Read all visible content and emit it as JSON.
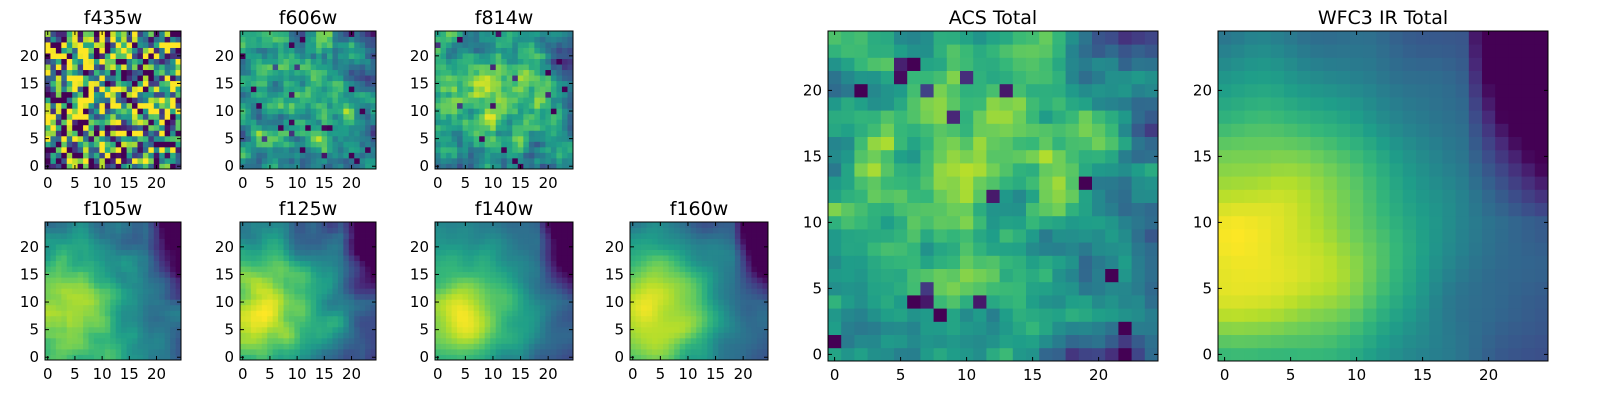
{
  "chart_data": [
    {
      "type": "heatmap",
      "title": "f435w",
      "grid": [
        25,
        25
      ],
      "xlim": [
        0,
        24
      ],
      "ylim": [
        0,
        24
      ],
      "xticks": [
        0,
        5,
        10,
        15,
        20
      ],
      "yticks": [
        0,
        5,
        10,
        15,
        20
      ],
      "colormap": "viridis",
      "seed": 11,
      "smooth": 0.0,
      "noise": 1.0,
      "blob": [
        12,
        12,
        0.25
      ],
      "dark_corner": 0.0
    },
    {
      "type": "heatmap",
      "title": "f606w",
      "grid": [
        25,
        25
      ],
      "xlim": [
        0,
        24
      ],
      "ylim": [
        0,
        24
      ],
      "xticks": [
        0,
        5,
        10,
        15,
        20
      ],
      "yticks": [
        0,
        5,
        10,
        15,
        20
      ],
      "colormap": "viridis",
      "seed": 23,
      "smooth": 0.15,
      "noise": 0.9,
      "blob": [
        10,
        12,
        0.35
      ],
      "dark_corner": 0.1
    },
    {
      "type": "heatmap",
      "title": "f814w",
      "grid": [
        25,
        25
      ],
      "xlim": [
        0,
        24
      ],
      "ylim": [
        0,
        24
      ],
      "xticks": [
        0,
        5,
        10,
        15,
        20
      ],
      "yticks": [
        0,
        5,
        10,
        15,
        20
      ],
      "colormap": "viridis",
      "seed": 37,
      "smooth": 0.3,
      "noise": 0.8,
      "blob": [
        11,
        13,
        0.5
      ],
      "dark_corner": 0.15
    },
    {
      "type": "heatmap",
      "title": "f105w",
      "grid": [
        25,
        25
      ],
      "xlim": [
        0,
        24
      ],
      "ylim": [
        0,
        24
      ],
      "xticks": [
        0,
        5,
        10,
        15,
        20
      ],
      "yticks": [
        0,
        5,
        10,
        15,
        20
      ],
      "colormap": "viridis",
      "seed": 41,
      "smooth": 0.6,
      "noise": 0.5,
      "blob": [
        3,
        8,
        0.7
      ],
      "dark_corner": 0.6
    },
    {
      "type": "heatmap",
      "title": "f125w",
      "grid": [
        25,
        25
      ],
      "xlim": [
        0,
        24
      ],
      "ylim": [
        0,
        24
      ],
      "xticks": [
        0,
        5,
        10,
        15,
        20
      ],
      "yticks": [
        0,
        5,
        10,
        15,
        20
      ],
      "colormap": "viridis",
      "seed": 53,
      "smooth": 0.6,
      "noise": 0.5,
      "blob": [
        3,
        8,
        0.7
      ],
      "dark_corner": 0.7
    },
    {
      "type": "heatmap",
      "title": "f140w",
      "grid": [
        25,
        25
      ],
      "xlim": [
        0,
        24
      ],
      "ylim": [
        0,
        24
      ],
      "xticks": [
        0,
        5,
        10,
        15,
        20
      ],
      "yticks": [
        0,
        5,
        10,
        15,
        20
      ],
      "colormap": "viridis",
      "seed": 67,
      "smooth": 0.65,
      "noise": 0.45,
      "blob": [
        3,
        8,
        0.75
      ],
      "dark_corner": 0.7
    },
    {
      "type": "heatmap",
      "title": "f160w",
      "grid": [
        25,
        25
      ],
      "xlim": [
        0,
        24
      ],
      "ylim": [
        0,
        24
      ],
      "xticks": [
        0,
        5,
        10,
        15,
        20
      ],
      "yticks": [
        0,
        5,
        10,
        15,
        20
      ],
      "colormap": "viridis",
      "seed": 71,
      "smooth": 0.7,
      "noise": 0.4,
      "blob": [
        3,
        8,
        0.8
      ],
      "dark_corner": 0.8
    },
    {
      "type": "heatmap",
      "title": "ACS Total",
      "grid": [
        25,
        25
      ],
      "xlim": [
        0,
        24
      ],
      "ylim": [
        0,
        24
      ],
      "xticks": [
        0,
        5,
        10,
        15,
        20
      ],
      "yticks": [
        0,
        5,
        10,
        15,
        20
      ],
      "colormap": "viridis",
      "seed": 83,
      "smooth": 0.35,
      "noise": 0.7,
      "blob": [
        11,
        14,
        0.55
      ],
      "dark_corner": 0.2
    },
    {
      "type": "heatmap",
      "title": "WFC3 IR Total",
      "grid": [
        25,
        25
      ],
      "xlim": [
        0,
        24
      ],
      "ylim": [
        0,
        24
      ],
      "xticks": [
        0,
        5,
        10,
        15,
        20
      ],
      "yticks": [
        0,
        5,
        10,
        15,
        20
      ],
      "colormap": "viridis",
      "seed": 97,
      "smooth": 0.8,
      "noise": 0.25,
      "blob": [
        2,
        8,
        0.85
      ],
      "dark_corner": 0.9
    }
  ],
  "colors": {
    "viridis_stops": [
      "#440154",
      "#482878",
      "#3e4989",
      "#31688e",
      "#26828e",
      "#1f9e89",
      "#35b779",
      "#6ece58",
      "#b5de2b",
      "#fde725"
    ]
  }
}
